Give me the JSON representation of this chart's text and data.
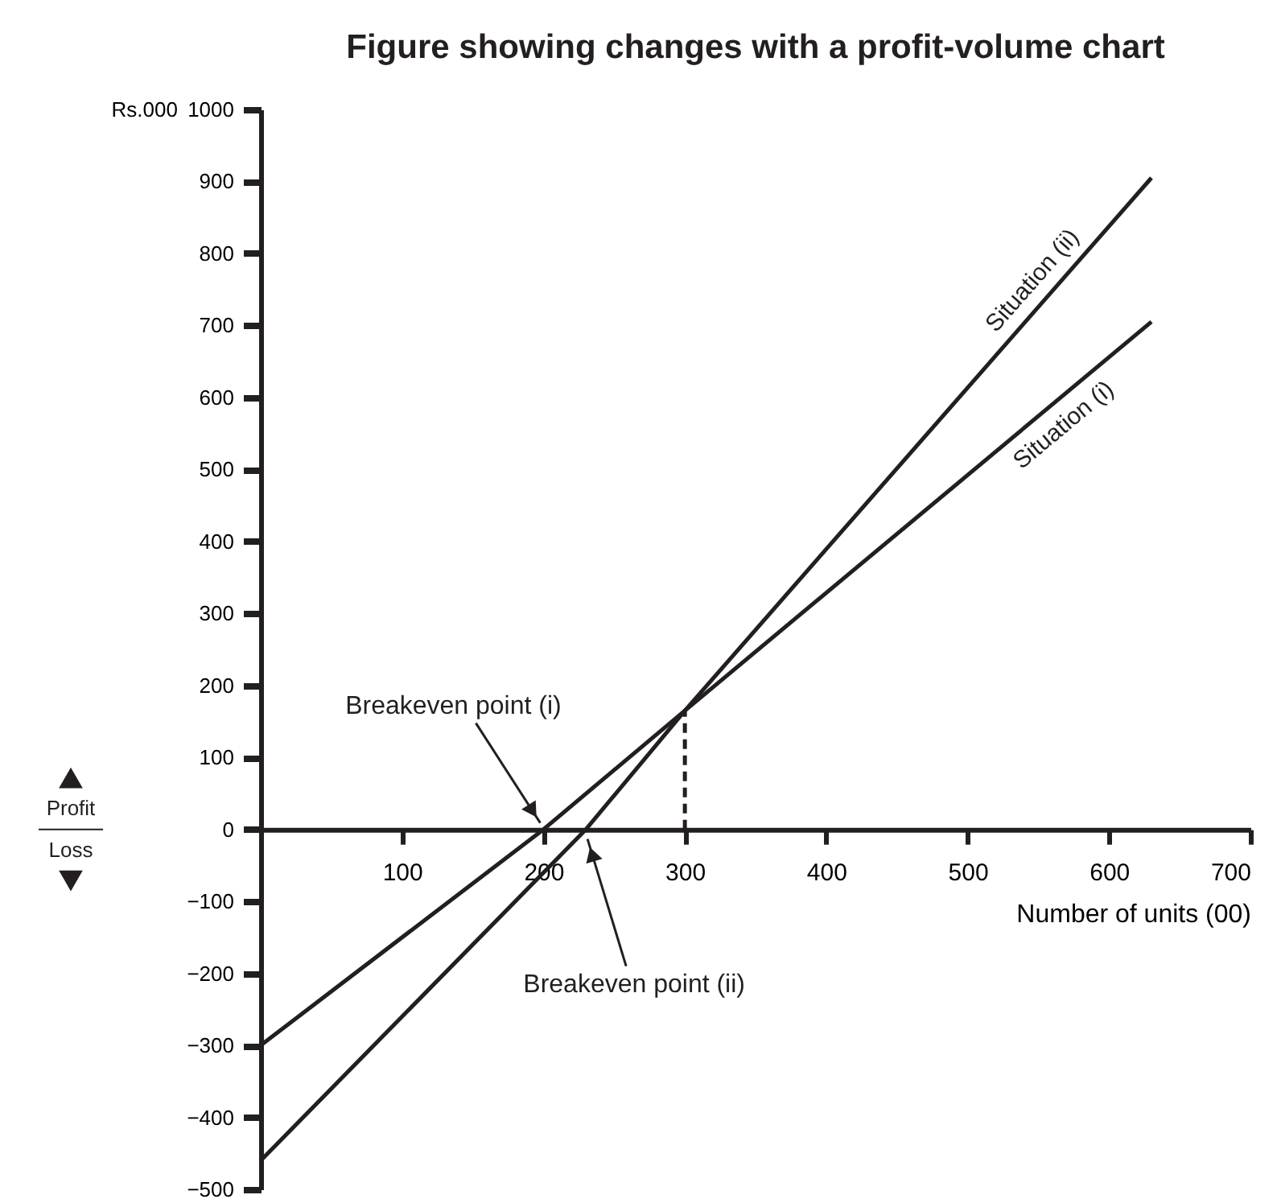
{
  "chart_data": {
    "type": "line",
    "title": "Figure showing changes with a profit-volume chart",
    "xlabel": "Number of units (00)",
    "ylabel": "Rs.000",
    "xlim": [
      0,
      700
    ],
    "xticks": [
      100,
      200,
      300,
      400,
      500,
      600,
      700
    ],
    "ylim": [
      -500,
      1000
    ],
    "yticks": [
      -500,
      -400,
      -300,
      -200,
      -100,
      0,
      100,
      200,
      300,
      400,
      500,
      600,
      700,
      800,
      900,
      1000
    ],
    "grid": false,
    "marker": "none",
    "line_style": "solid",
    "series": [
      {
        "name": "Situation (i)",
        "color": "#231f20",
        "x": [
          0,
          200,
          300,
          630
        ],
        "values": [
          -300,
          0,
          165,
          705
        ]
      },
      {
        "name": "Situation (ii)",
        "color": "#231f20",
        "x": [
          0,
          230,
          300,
          630
        ],
        "values": [
          -460,
          0,
          165,
          905
        ]
      },
      {
        "color": "#231f20",
        "line_style": "dashed",
        "x": [
          300,
          300
        ],
        "values": [
          0,
          165
        ]
      }
    ],
    "annotations": [
      {
        "text": "Breakeven point (i)",
        "x": 200,
        "y": 0
      },
      {
        "text": "Breakeven point (ii)",
        "x": 230,
        "y": 0
      },
      "Profit",
      "Loss"
    ]
  }
}
